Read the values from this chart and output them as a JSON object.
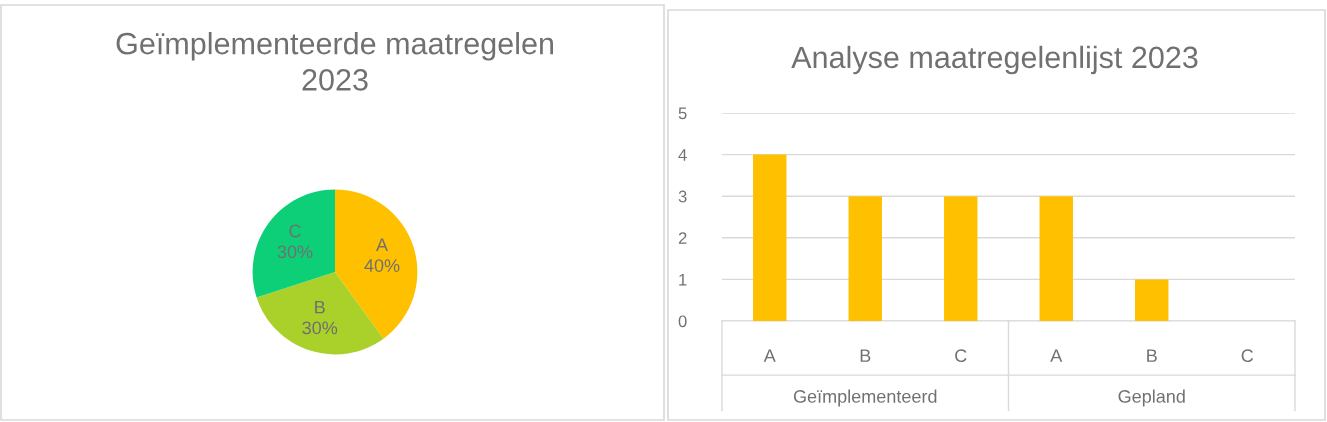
{
  "chart_data": [
    {
      "type": "pie",
      "title": "Geïmplementeerde maatregelen 2023",
      "categories": [
        "A",
        "B",
        "C"
      ],
      "values": [
        40,
        30,
        30
      ],
      "value_labels": [
        "40%",
        "30%",
        "30%"
      ],
      "colors": [
        "#ffc000",
        "#a9d12a",
        "#0ccf78"
      ],
      "legend": false
    },
    {
      "type": "bar",
      "title": "Analyse maatregelenlijst 2023",
      "categories": [
        "A",
        "B",
        "C",
        "A",
        "B",
        "C"
      ],
      "values": [
        4,
        3,
        3,
        3,
        1,
        0
      ],
      "color": "#ffc000",
      "ylim": [
        0,
        5
      ],
      "yticks": [
        0,
        1,
        2,
        3,
        4,
        5
      ],
      "grid": "y",
      "legend": false,
      "annotations": [
        "Geïmplementeerd",
        "Gepland"
      ]
    }
  ]
}
